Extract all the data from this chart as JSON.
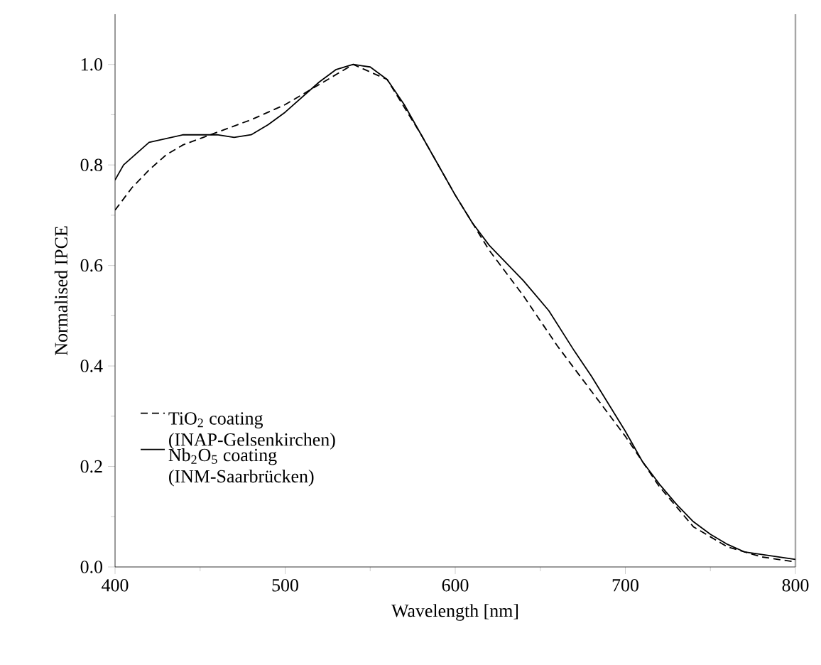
{
  "chart_data": {
    "type": "line",
    "xlabel": "Wavelength [nm]",
    "ylabel": "Normalised IPCE",
    "xlim": [
      400,
      800
    ],
    "ylim": [
      0,
      1.1
    ],
    "xticks": [
      400,
      500,
      600,
      700,
      800
    ],
    "yticks": [
      {
        "value": 0,
        "label": "0.0"
      },
      0.2,
      0.4,
      0.6,
      0.8,
      {
        "value": 1,
        "label": "1.0"
      }
    ],
    "legend": "bottom left",
    "grid": false,
    "marker": "none",
    "series": [
      {
        "name": "TiO$_{2}$ coating (INAP-Gelsenkirchen)",
        "color": "#000000",
        "line_style": "dashed",
        "x": [
          400,
          410,
          420,
          430,
          440,
          460,
          480,
          500,
          520,
          540,
          560,
          580,
          600,
          620,
          640,
          660,
          680,
          700,
          720,
          740,
          760,
          780,
          800
        ],
        "values": [
          0.71,
          0.755,
          0.79,
          0.82,
          0.84,
          0.865,
          0.89,
          0.92,
          0.96,
          1.0,
          0.97,
          0.86,
          0.74,
          0.63,
          0.54,
          0.44,
          0.35,
          0.26,
          0.16,
          0.08,
          0.04,
          0.02,
          0.01
        ]
      },
      {
        "name": "Nb$_{2}$O$_{5}$ coating (INM-Saarbrücken)",
        "color": "#000000",
        "line_style": "solid",
        "x": [
          400,
          405,
          420,
          440,
          460,
          470,
          480,
          490,
          500,
          510,
          520,
          530,
          540,
          550,
          560,
          570,
          580,
          590,
          600,
          610,
          620,
          640,
          655,
          670,
          680,
          700,
          710,
          720,
          730,
          740,
          750,
          760,
          770,
          780,
          790,
          800
        ],
        "values": [
          0.77,
          0.8,
          0.845,
          0.86,
          0.86,
          0.855,
          0.86,
          0.88,
          0.905,
          0.935,
          0.965,
          0.99,
          1.0,
          0.995,
          0.97,
          0.92,
          0.86,
          0.8,
          0.74,
          0.685,
          0.64,
          0.57,
          0.51,
          0.43,
          0.38,
          0.27,
          0.21,
          0.165,
          0.125,
          0.09,
          0.065,
          0.045,
          0.03,
          0.025,
          0.02,
          0.015
        ]
      }
    ]
  }
}
